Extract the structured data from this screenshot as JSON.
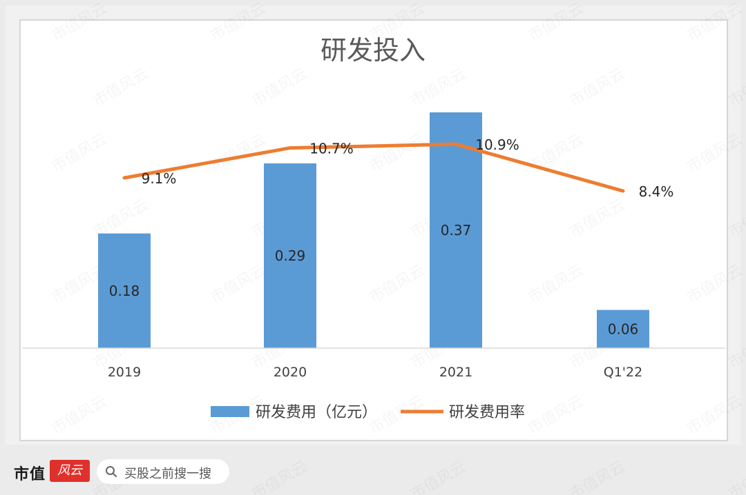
{
  "chart_data": {
    "type": "bar",
    "title": "研发投入",
    "categories": [
      "2019",
      "2020",
      "2021",
      "Q1'22"
    ],
    "series": [
      {
        "name": "研发费用（亿元）",
        "type": "bar",
        "values": [
          0.18,
          0.29,
          0.37,
          0.06
        ],
        "labels": [
          "0.18",
          "0.29",
          "0.37",
          "0.06"
        ],
        "color": "#5b9bd5"
      },
      {
        "name": "研发费用率",
        "type": "line",
        "values": [
          9.1,
          10.7,
          10.9,
          8.4
        ],
        "labels": [
          "9.1%",
          "10.7%",
          "10.9%",
          "8.4%"
        ],
        "color": "#ed7d31"
      }
    ],
    "ylim": [
      0,
      0.37
    ],
    "y2lim": [
      0,
      12.6
    ],
    "grid": false,
    "legend": "bottom"
  },
  "watermark": "市值风云",
  "footer": {
    "brand": "市值",
    "logo": "风云",
    "search_text": "买股之前搜一搜"
  }
}
